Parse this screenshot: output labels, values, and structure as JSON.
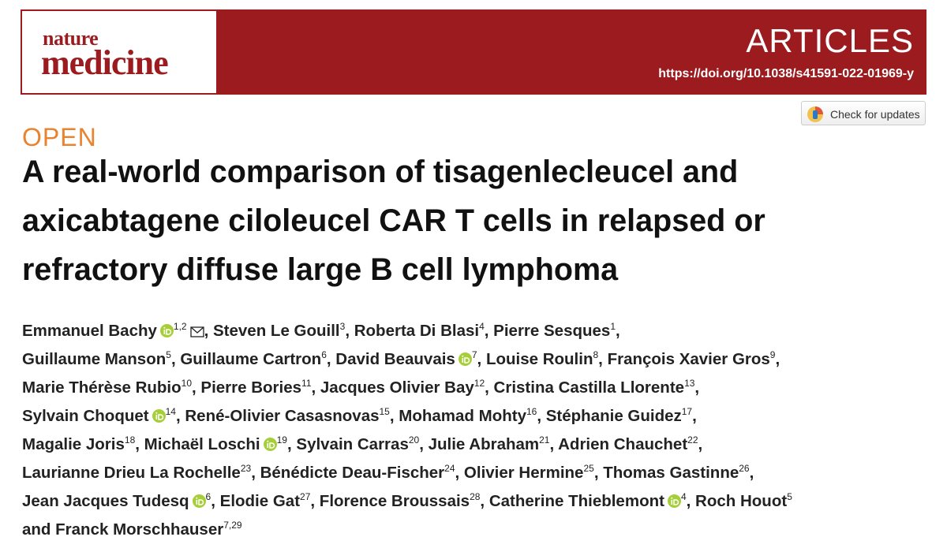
{
  "header": {
    "journal_small": "nature",
    "journal_large": "medicine",
    "section": "ARTICLES",
    "doi": "https://doi.org/10.1038/s41591-022-01969-y"
  },
  "check_updates": "Check for updates",
  "access": "OPEN",
  "title_lines": [
    "A real-world comparison of tisagenlecleucel and",
    "axicabtagene ciloleucel CAR T cells in relapsed or",
    "refractory diffuse large B cell lymphoma"
  ],
  "author_lines": [
    [
      {
        "name": "Emmanuel Bachy",
        "orcid": true,
        "sup": "1,2",
        "corresponding": true,
        "punct": ","
      },
      {
        "name": "Steven Le Gouill",
        "sup": "3",
        "punct": ","
      },
      {
        "name": "Roberta Di Blasi",
        "sup": "4",
        "punct": ","
      },
      {
        "name": "Pierre Sesques",
        "sup": "1",
        "punct": ","
      }
    ],
    [
      {
        "name": "Guillaume Manson",
        "sup": "5",
        "punct": ","
      },
      {
        "name": "Guillaume Cartron",
        "sup": "6",
        "punct": ","
      },
      {
        "name": "David Beauvais",
        "orcid": true,
        "sup": "7",
        "punct": ","
      },
      {
        "name": "Louise Roulin",
        "sup": "8",
        "punct": ","
      },
      {
        "name": "François Xavier Gros",
        "sup": "9",
        "punct": ","
      }
    ],
    [
      {
        "name": "Marie Thérèse Rubio",
        "sup": "10",
        "punct": ","
      },
      {
        "name": "Pierre Bories",
        "sup": "11",
        "punct": ","
      },
      {
        "name": "Jacques Olivier Bay",
        "sup": "12",
        "punct": ","
      },
      {
        "name": "Cristina Castilla Llorente",
        "sup": "13",
        "punct": ","
      }
    ],
    [
      {
        "name": "Sylvain Choquet",
        "orcid": true,
        "sup": "14",
        "punct": ","
      },
      {
        "name": "René-Olivier Casasnovas",
        "sup": "15",
        "punct": ","
      },
      {
        "name": "Mohamad Mohty",
        "sup": "16",
        "punct": ","
      },
      {
        "name": "Stéphanie Guidez",
        "sup": "17",
        "punct": ","
      }
    ],
    [
      {
        "name": "Magalie Joris",
        "sup": "18",
        "punct": ","
      },
      {
        "name": "Michaël Loschi",
        "orcid": true,
        "sup": "19",
        "punct": ","
      },
      {
        "name": "Sylvain Carras",
        "sup": "20",
        "punct": ","
      },
      {
        "name": "Julie Abraham",
        "sup": "21",
        "punct": ","
      },
      {
        "name": "Adrien Chauchet",
        "sup": "22",
        "punct": ","
      }
    ],
    [
      {
        "name": "Laurianne Drieu La Rochelle",
        "sup": "23",
        "punct": ","
      },
      {
        "name": "Bénédicte Deau-Fischer",
        "sup": "24",
        "punct": ","
      },
      {
        "name": "Olivier Hermine",
        "sup": "25",
        "punct": ","
      },
      {
        "name": "Thomas Gastinne",
        "sup": "26",
        "punct": ","
      }
    ],
    [
      {
        "name": "Jean Jacques Tudesq",
        "orcid": true,
        "sup": "6",
        "punct": ","
      },
      {
        "name": "Elodie Gat",
        "sup": "27",
        "punct": ","
      },
      {
        "name": "Florence Broussais",
        "sup": "28",
        "punct": ","
      },
      {
        "name": "Catherine Thieblemont",
        "orcid": true,
        "sup": "4",
        "punct": ","
      },
      {
        "name": "Roch Houot",
        "sup": "5"
      }
    ],
    [
      {
        "connector": "and",
        "name": "Franck Morschhauser",
        "sup": "7,29"
      }
    ]
  ]
}
